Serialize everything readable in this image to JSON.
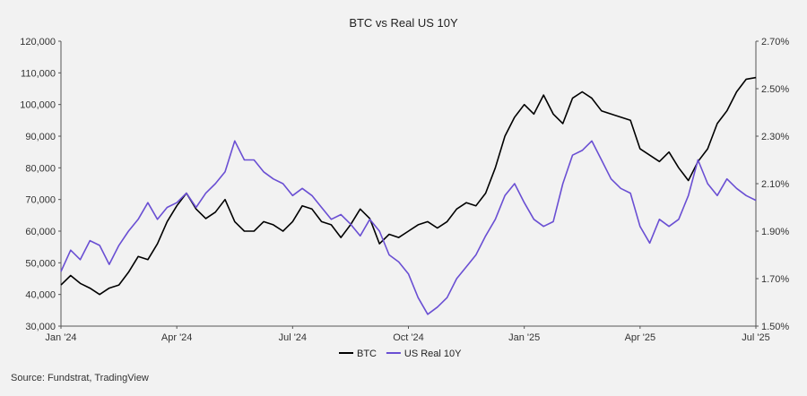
{
  "chart_data": {
    "type": "line",
    "title": "BTC vs Real US 10Y",
    "source": "Source: Fundstrat, TradingView",
    "x_ticks": [
      "Jan '24",
      "Apr '24",
      "Jul '24",
      "Oct '24",
      "Jan '25",
      "Apr '25",
      "Jul '25"
    ],
    "y_left": {
      "ticks": [
        "30,000",
        "40,000",
        "50,000",
        "60,000",
        "70,000",
        "80,000",
        "90,000",
        "100,000",
        "110,000",
        "120,000"
      ],
      "ylim": [
        30000,
        120000
      ]
    },
    "y_right": {
      "ticks": [
        "1.50%",
        "1.70%",
        "1.90%",
        "2.10%",
        "2.30%",
        "2.50%",
        "2.70%"
      ],
      "ylim": [
        1.5,
        2.7
      ]
    },
    "xlim": [
      0,
      18
    ],
    "series": [
      {
        "name": "BTC",
        "axis": "left",
        "color": "#000000",
        "points": [
          [
            0,
            43000
          ],
          [
            0.25,
            46000
          ],
          [
            0.5,
            43500
          ],
          [
            0.75,
            42000
          ],
          [
            1.0,
            40000
          ],
          [
            1.25,
            42000
          ],
          [
            1.5,
            43000
          ],
          [
            1.75,
            47000
          ],
          [
            2.0,
            52000
          ],
          [
            2.25,
            51000
          ],
          [
            2.5,
            56000
          ],
          [
            2.75,
            63000
          ],
          [
            3.0,
            68000
          ],
          [
            3.25,
            72000
          ],
          [
            3.5,
            67000
          ],
          [
            3.75,
            64000
          ],
          [
            4.0,
            66000
          ],
          [
            4.25,
            70000
          ],
          [
            4.5,
            63000
          ],
          [
            4.75,
            60000
          ],
          [
            5.0,
            60000
          ],
          [
            5.25,
            63000
          ],
          [
            5.5,
            62000
          ],
          [
            5.75,
            60000
          ],
          [
            6.0,
            63000
          ],
          [
            6.25,
            68000
          ],
          [
            6.5,
            67000
          ],
          [
            6.75,
            63000
          ],
          [
            7.0,
            62000
          ],
          [
            7.25,
            58000
          ],
          [
            7.5,
            62000
          ],
          [
            7.75,
            67000
          ],
          [
            8.0,
            64000
          ],
          [
            8.25,
            56000
          ],
          [
            8.5,
            59000
          ],
          [
            8.75,
            58000
          ],
          [
            9.0,
            60000
          ],
          [
            9.25,
            62000
          ],
          [
            9.5,
            63000
          ],
          [
            9.75,
            61000
          ],
          [
            10.0,
            63000
          ],
          [
            10.25,
            67000
          ],
          [
            10.5,
            69000
          ],
          [
            10.75,
            68000
          ],
          [
            11.0,
            72000
          ],
          [
            11.25,
            80000
          ],
          [
            11.5,
            90000
          ],
          [
            11.75,
            96000
          ],
          [
            12.0,
            100000
          ],
          [
            12.25,
            97000
          ],
          [
            12.5,
            103000
          ],
          [
            12.75,
            97000
          ],
          [
            13.0,
            94000
          ],
          [
            13.25,
            102000
          ],
          [
            13.5,
            104000
          ],
          [
            13.75,
            102000
          ],
          [
            14.0,
            98000
          ],
          [
            14.25,
            97000
          ],
          [
            14.5,
            96000
          ],
          [
            14.75,
            95000
          ],
          [
            15.0,
            86000
          ],
          [
            15.25,
            84000
          ],
          [
            15.5,
            82000
          ],
          [
            15.75,
            85000
          ],
          [
            16.0,
            80000
          ],
          [
            16.25,
            76000
          ],
          [
            16.5,
            82000
          ],
          [
            16.75,
            86000
          ],
          [
            17.0,
            94000
          ],
          [
            17.25,
            98000
          ],
          [
            17.5,
            104000
          ],
          [
            17.75,
            108000
          ],
          [
            18.0,
            108500
          ]
        ]
      },
      {
        "name": "US Real 10Y",
        "axis": "right",
        "color": "#6a4fd3",
        "points": [
          [
            0,
            1.73
          ],
          [
            0.25,
            1.82
          ],
          [
            0.5,
            1.78
          ],
          [
            0.75,
            1.86
          ],
          [
            1.0,
            1.84
          ],
          [
            1.25,
            1.76
          ],
          [
            1.5,
            1.84
          ],
          [
            1.75,
            1.9
          ],
          [
            2.0,
            1.95
          ],
          [
            2.25,
            2.02
          ],
          [
            2.5,
            1.95
          ],
          [
            2.75,
            2.0
          ],
          [
            3.0,
            2.02
          ],
          [
            3.25,
            2.06
          ],
          [
            3.5,
            2.0
          ],
          [
            3.75,
            2.06
          ],
          [
            4.0,
            2.1
          ],
          [
            4.25,
            2.15
          ],
          [
            4.5,
            2.28
          ],
          [
            4.75,
            2.2
          ],
          [
            5.0,
            2.2
          ],
          [
            5.25,
            2.15
          ],
          [
            5.5,
            2.12
          ],
          [
            5.75,
            2.1
          ],
          [
            6.0,
            2.05
          ],
          [
            6.25,
            2.08
          ],
          [
            6.5,
            2.05
          ],
          [
            6.75,
            2.0
          ],
          [
            7.0,
            1.95
          ],
          [
            7.25,
            1.97
          ],
          [
            7.5,
            1.93
          ],
          [
            7.75,
            1.88
          ],
          [
            8.0,
            1.95
          ],
          [
            8.25,
            1.9
          ],
          [
            8.5,
            1.8
          ],
          [
            8.75,
            1.77
          ],
          [
            9.0,
            1.72
          ],
          [
            9.25,
            1.62
          ],
          [
            9.5,
            1.55
          ],
          [
            9.75,
            1.58
          ],
          [
            10.0,
            1.62
          ],
          [
            10.25,
            1.7
          ],
          [
            10.5,
            1.75
          ],
          [
            10.75,
            1.8
          ],
          [
            11.0,
            1.88
          ],
          [
            11.25,
            1.95
          ],
          [
            11.5,
            2.05
          ],
          [
            11.75,
            2.1
          ],
          [
            12.0,
            2.02
          ],
          [
            12.25,
            1.95
          ],
          [
            12.5,
            1.92
          ],
          [
            12.75,
            1.94
          ],
          [
            13.0,
            2.1
          ],
          [
            13.25,
            2.22
          ],
          [
            13.5,
            2.24
          ],
          [
            13.75,
            2.28
          ],
          [
            14.0,
            2.2
          ],
          [
            14.25,
            2.12
          ],
          [
            14.5,
            2.08
          ],
          [
            14.75,
            2.06
          ],
          [
            15.0,
            1.92
          ],
          [
            15.25,
            1.85
          ],
          [
            15.5,
            1.95
          ],
          [
            15.75,
            1.92
          ],
          [
            16.0,
            1.95
          ],
          [
            16.25,
            2.05
          ],
          [
            16.5,
            2.2
          ],
          [
            16.75,
            2.1
          ],
          [
            17.0,
            2.05
          ],
          [
            17.25,
            2.12
          ],
          [
            17.5,
            2.08
          ],
          [
            17.75,
            2.05
          ],
          [
            18.0,
            2.03
          ]
        ]
      }
    ]
  }
}
